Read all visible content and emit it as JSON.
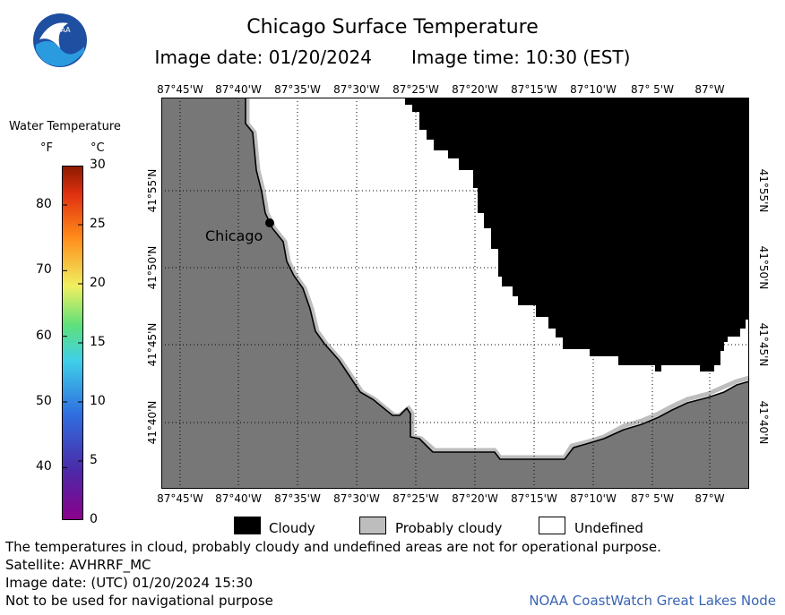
{
  "title": "Chicago Surface Temperature",
  "image_date": "Image date: 01/20/2024",
  "image_time": "Image time: 10:30 (EST)",
  "logo_text": "NOAA",
  "legend": {
    "title": "Water Temperature",
    "unit_f": "°F",
    "unit_c": "°C",
    "ticks_f": [
      "80",
      "70",
      "60",
      "50",
      "40"
    ],
    "ticks_c": [
      "30",
      "25",
      "20",
      "15",
      "10",
      "5",
      "0"
    ],
    "range_f": [
      32,
      86
    ],
    "range_c": [
      0,
      30
    ]
  },
  "map": {
    "lon_labels": [
      "87°45'W",
      "87°40'W",
      "87°35'W",
      "87°30'W",
      "87°25'W",
      "87°20'W",
      "87°15'W",
      "87°10'W",
      "87° 5'W",
      "87°W"
    ],
    "lat_labels": [
      "41°55'N",
      "41°50'N",
      "41°45'N",
      "41°40'N"
    ],
    "city_label": "Chicago"
  },
  "key": {
    "cloudy": "Cloudy",
    "probably_cloudy": "Probably cloudy",
    "undefined": "Undefined"
  },
  "footer": {
    "note": "The temperatures in cloud, probably cloudy and undefined areas are not for operational purpose.",
    "satellite": "Satellite: AVHRRF_MC",
    "utc_date": "Image date: (UTC) 01/20/2024  15:30",
    "nav_warning": "Not to be used for navigational purpose",
    "node": "NOAA CoastWatch Great Lakes Node"
  },
  "colors": {
    "land": "#777777",
    "cloudy": "#000000",
    "probably_cloudy": "#bdbdbd",
    "undefined": "#ffffff",
    "node_link": "#3a64b4"
  }
}
